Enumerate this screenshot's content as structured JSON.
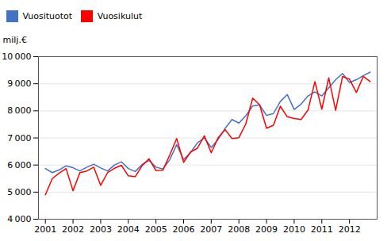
{
  "chart_data": {
    "type": "line",
    "ylabel": "milj.€",
    "x": [
      2001,
      2001.25,
      2001.5,
      2001.75,
      2002,
      2002.25,
      2002.5,
      2002.75,
      2003,
      2003.25,
      2003.5,
      2003.75,
      2004,
      2004.25,
      2004.5,
      2004.75,
      2005,
      2005.25,
      2005.5,
      2005.75,
      2006,
      2006.25,
      2006.5,
      2006.75,
      2007,
      2007.25,
      2007.5,
      2007.75,
      2008,
      2008.25,
      2008.5,
      2008.75,
      2009,
      2009.25,
      2009.5,
      2009.75,
      2010,
      2010.25,
      2010.5,
      2010.75,
      2011,
      2011.25,
      2011.5,
      2011.75,
      2012,
      2012.25,
      2012.5,
      2012.75
    ],
    "series": [
      {
        "name": "Vuosituotot",
        "color": "#4472C4",
        "values": [
          5870,
          5720,
          5820,
          5970,
          5900,
          5780,
          5920,
          6030,
          5890,
          5780,
          6000,
          6120,
          5870,
          5760,
          6020,
          6170,
          5920,
          5850,
          6200,
          6750,
          6200,
          6450,
          6820,
          7000,
          6650,
          6950,
          7350,
          7680,
          7550,
          7820,
          8180,
          8220,
          7830,
          7900,
          8350,
          8600,
          8050,
          8250,
          8550,
          8700,
          8550,
          8850,
          9150,
          9380,
          9050,
          9150,
          9300,
          9430
        ]
      },
      {
        "name": "Vuosikulut",
        "color": "#FF0000",
        "values": [
          4900,
          5500,
          5700,
          5870,
          5050,
          5720,
          5780,
          5920,
          5250,
          5720,
          5880,
          5990,
          5600,
          5570,
          5980,
          6230,
          5800,
          5810,
          6370,
          6980,
          6100,
          6480,
          6620,
          7080,
          6450,
          7010,
          7310,
          6980,
          7010,
          7520,
          8470,
          8220,
          7360,
          7470,
          8170,
          7780,
          7720,
          7680,
          8030,
          9080,
          8060,
          9220,
          8020,
          9270,
          9170,
          8680,
          9270,
          9080
        ]
      }
    ],
    "xlim": [
      2000.75,
      2013.0
    ],
    "ylim": [
      4000,
      10000
    ],
    "xticks": [
      2001,
      2002,
      2003,
      2004,
      2005,
      2006,
      2007,
      2008,
      2009,
      2010,
      2011,
      2012
    ],
    "yticks": [
      {
        "value": 4000,
        "label": "4 000"
      },
      {
        "value": 5000,
        "label": "5 000"
      },
      {
        "value": 6000,
        "label": "6 000"
      },
      {
        "value": 7000,
        "label": "7 000"
      },
      {
        "value": 8000,
        "label": "8 000"
      },
      {
        "value": 9000,
        "label": "9 000"
      },
      {
        "value": 10000,
        "label": "10 000"
      }
    ],
    "grid": "y",
    "legend": "upper left"
  }
}
